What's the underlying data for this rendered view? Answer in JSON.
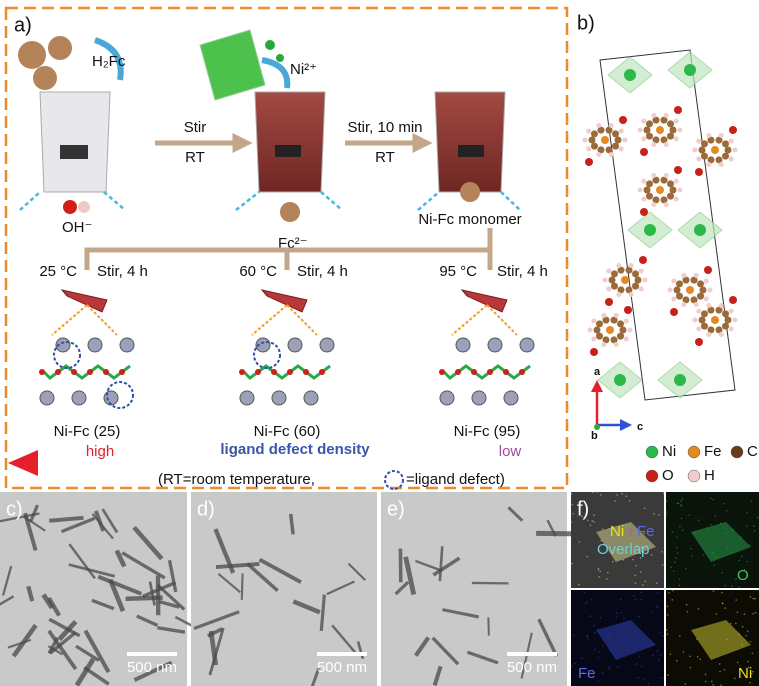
{
  "panel_a": {
    "label": "a)",
    "h2fc": "H₂Fc",
    "ni2": "Ni²⁺",
    "oh": "OH⁻",
    "fc2": "Fc²⁻",
    "step1": [
      "Stir",
      "RT"
    ],
    "step2": [
      "Stir, 10 min",
      "RT"
    ],
    "monomer": "Ni-Fc monomer",
    "conditions": [
      {
        "temp": "25 °C",
        "stir": "Stir, 4 h",
        "product": "Ni-Fc (25)"
      },
      {
        "temp": "60 °C",
        "stir": "Stir, 4 h",
        "product": "Ni-Fc (60)"
      },
      {
        "temp": "95 °C",
        "stir": "Stir, 4 h",
        "product": "Ni-Fc (95)"
      }
    ],
    "arrow": {
      "high": "high",
      "title": "ligand defect density",
      "low": "low"
    },
    "note": [
      "(RT=room temperature,",
      "=ligand defect)"
    ]
  },
  "panel_b": {
    "label": "b)",
    "axes": [
      "a",
      "b",
      "c"
    ],
    "legend": [
      "Ni",
      "Fe",
      "C",
      "O",
      "H"
    ]
  },
  "tem": [
    {
      "label": "c)",
      "scale": "500 nm"
    },
    {
      "label": "d)",
      "scale": "500 nm"
    },
    {
      "label": "e)",
      "scale": "500 nm"
    }
  ],
  "panel_f": {
    "label": "f)",
    "overlap": {
      "ni": "Ni",
      "plus": "+",
      "fe": "Fe",
      "word": "Overlap"
    },
    "o": "O",
    "fe": "Fe",
    "ni": "Ni"
  }
}
